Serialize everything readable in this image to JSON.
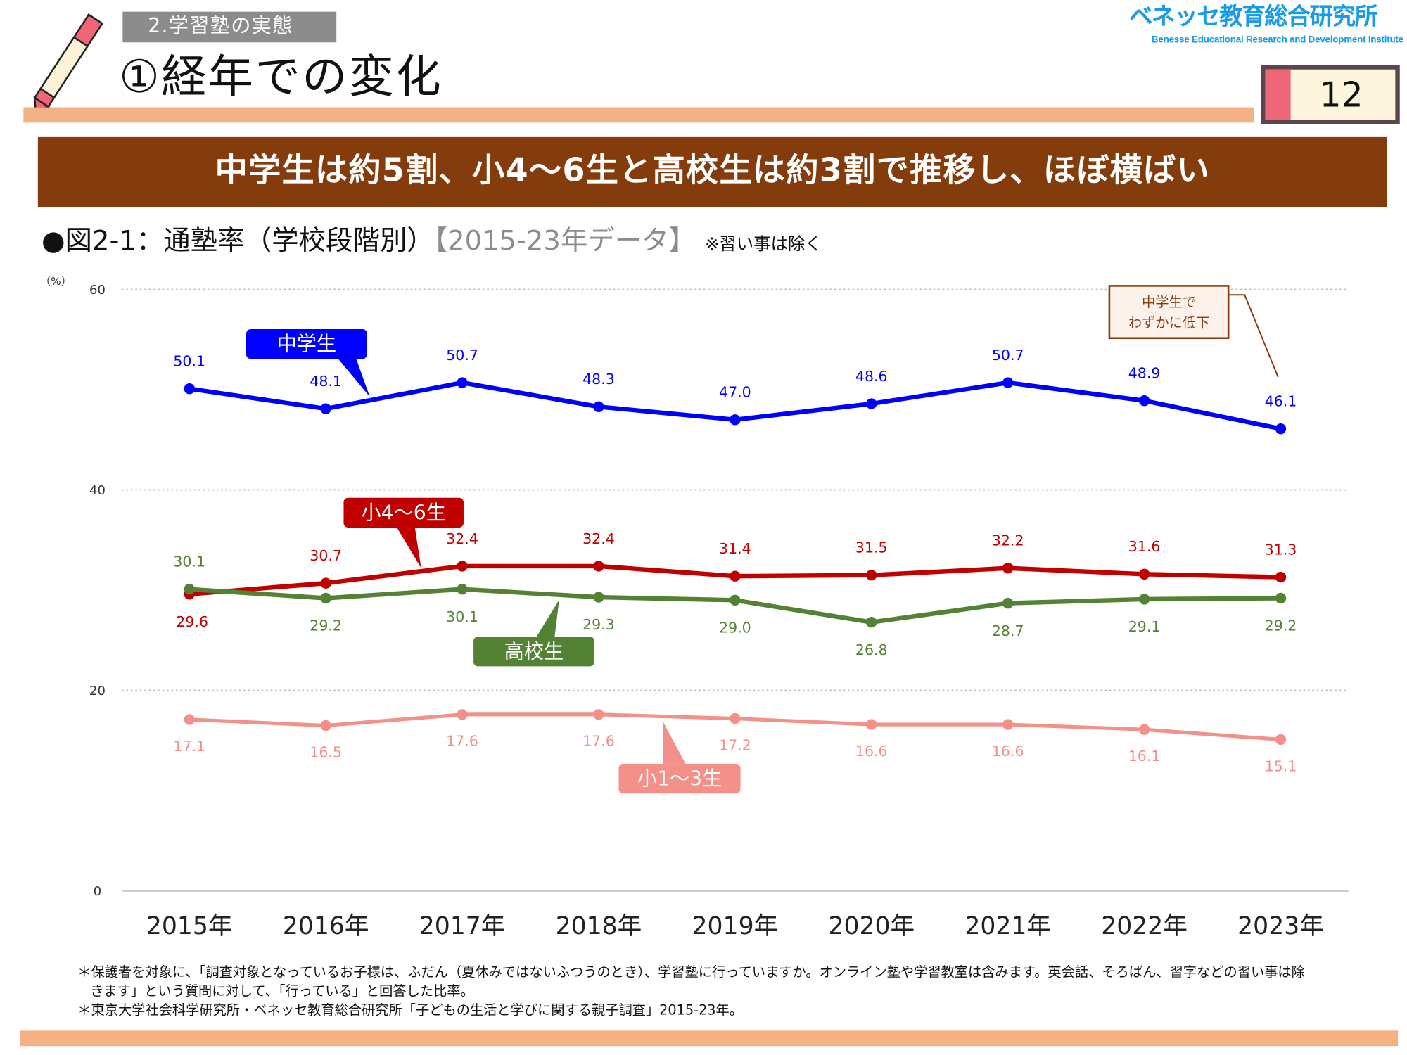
{
  "header": {
    "section_tag": "2.学習塾の実態",
    "page_title": "①経年での変化",
    "logo_main": "ベネッセ教育総合研究所",
    "logo_sub": "Benesse  Educational Research and Development Institute",
    "page_number": "12"
  },
  "headline": "中学生は約5割、小4～6生と高校生は約3割で推移し、ほぼ横ばい",
  "figure": {
    "title_main": "●図2-1：通塾率（学校段階別）",
    "title_years": "【2015-23年データ】",
    "title_note": "※習い事は除く"
  },
  "chart_data": {
    "type": "line",
    "title": "図2-1：通塾率（学校段階別）",
    "ylabel": "（%）",
    "xlabel": "",
    "ylim": [
      0,
      60
    ],
    "yticks": [
      0,
      20,
      40,
      60
    ],
    "grid": true,
    "categories": [
      "2015年",
      "2016年",
      "2017年",
      "2018年",
      "2019年",
      "2020年",
      "2021年",
      "2022年",
      "2023年"
    ],
    "series": [
      {
        "name": "中学生",
        "color": "#0000ff",
        "values": [
          50.1,
          48.1,
          50.7,
          48.3,
          47.0,
          48.6,
          50.7,
          48.9,
          46.1
        ],
        "labels": [
          "50.1",
          "48.1",
          "50.7",
          "48.3",
          "47.0",
          "48.6",
          "50.7",
          "48.9",
          "46.1"
        ]
      },
      {
        "name": "小4～6生",
        "color": "#c00000",
        "values": [
          29.6,
          30.7,
          32.4,
          32.4,
          31.4,
          31.5,
          32.2,
          31.6,
          31.3
        ],
        "labels": [
          "29.6",
          "30.7",
          "32.4",
          "32.4",
          "31.4",
          "31.5",
          "32.2",
          "31.6",
          "31.3"
        ]
      },
      {
        "name": "高校生",
        "color": "#548235",
        "values": [
          30.1,
          29.2,
          30.1,
          29.3,
          29.0,
          26.8,
          28.7,
          29.1,
          29.2
        ],
        "labels": [
          "30.1",
          "29.2",
          "30.1",
          "29.3",
          "29.0",
          "26.8",
          "28.7",
          "29.1",
          "29.2"
        ]
      },
      {
        "name": "小1～3生",
        "color": "#f4908a",
        "values": [
          17.1,
          16.5,
          17.6,
          17.6,
          17.2,
          16.6,
          16.6,
          16.1,
          15.1
        ],
        "labels": [
          "17.1",
          "16.5",
          "17.6",
          "17.6",
          "17.2",
          "16.6",
          "16.6",
          "16.1",
          "15.1"
        ]
      }
    ],
    "annotations": [
      {
        "text_line1": "中学生で",
        "text_line2": "わずかに低下"
      }
    ]
  },
  "notes": {
    "line1": "＊保護者を対象に、「調査対象となっているお子様は、ふだん（夏休みではないふつうのとき）、学習塾に行っていますか。オンライン塾や学習教室は含みます。英会話、そろばん、習字などの習い事は除",
    "line2": "きます」という質問に対して、「行っている」と回答した比率。",
    "line3": "＊東京大学社会科学研究所・ベネッセ教育総合研究所「子どもの生活と学びに関する親子調査」2015-23年。"
  }
}
